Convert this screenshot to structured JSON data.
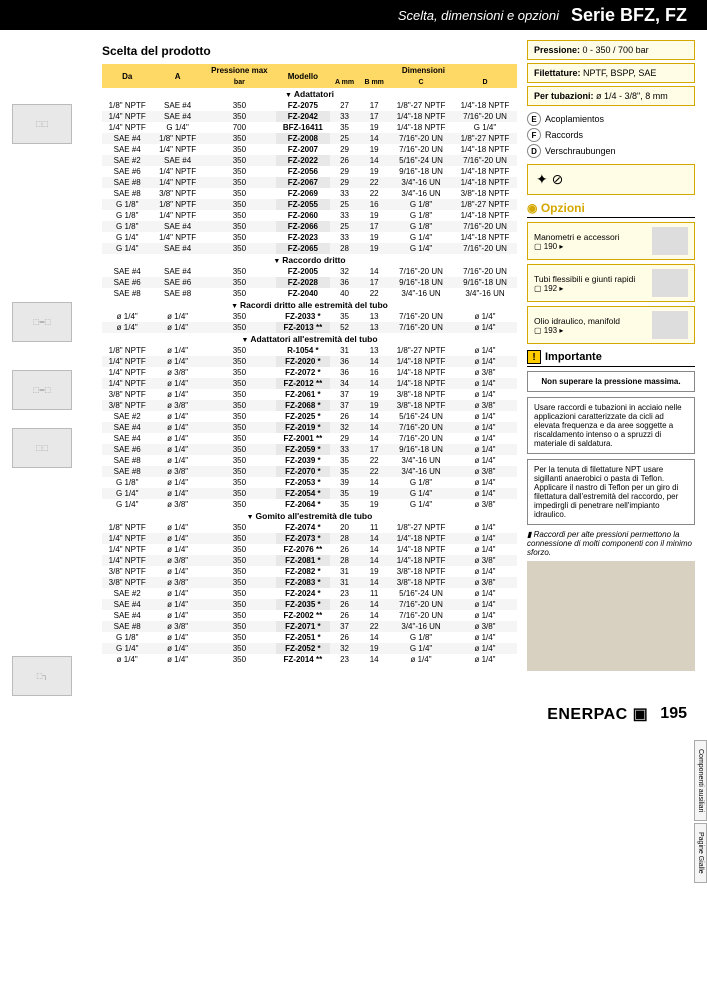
{
  "header": {
    "subtitle": "Scelta, dimensioni e opzioni",
    "title": "Serie BFZ, FZ"
  },
  "section_heading": "Scelta del prodotto",
  "table_headers": {
    "da": "Da",
    "a": "A",
    "press": "Pressione max",
    "press_unit": "bar",
    "model": "Modello",
    "dims": "Dimensioni",
    "amm": "A mm",
    "bmm": "B mm",
    "c": "C",
    "d": "D"
  },
  "groups": [
    {
      "name": "Adattatori",
      "rows": [
        [
          "1/8\" NPTF",
          "SAE #4",
          "350",
          "FZ-2075",
          "27",
          "17",
          "1/8\"-27 NPTF",
          "1/4\"-18 NPTF"
        ],
        [
          "1/4\" NPTF",
          "SAE #4",
          "350",
          "FZ-2042",
          "33",
          "17",
          "1/4\"-18 NPTF",
          "7/16\"-20 UN"
        ],
        [
          "1/4\" NPTF",
          "G 1/4\"",
          "700",
          "BFZ-16411",
          "35",
          "19",
          "1/4\"-18 NPTF",
          "G 1/4\""
        ],
        [
          "SAE #4",
          "1/8\" NPTF",
          "350",
          "FZ-2008",
          "25",
          "14",
          "7/16\"-20 UN",
          "1/8\"-27 NPTF"
        ],
        [
          "SAE #4",
          "1/4\" NPTF",
          "350",
          "FZ-2007",
          "29",
          "19",
          "7/16\"-20 UN",
          "1/4\"-18 NPTF"
        ],
        [
          "SAE #2",
          "SAE #4",
          "350",
          "FZ-2022",
          "26",
          "14",
          "5/16\"-24 UN",
          "7/16\"-20 UN"
        ],
        [
          "SAE #6",
          "1/4\" NPTF",
          "350",
          "FZ-2056",
          "29",
          "19",
          "9/16\"-18 UN",
          "1/4\"-18 NPTF"
        ],
        [
          "SAE #8",
          "1/4\" NPTF",
          "350",
          "FZ-2067",
          "29",
          "22",
          "3/4\"-16 UN",
          "1/4\"-18 NPTF"
        ],
        [
          "SAE #8",
          "3/8\" NPTF",
          "350",
          "FZ-2069",
          "33",
          "22",
          "3/4\"-16 UN",
          "3/8\"-18 NPTF"
        ],
        [
          "G 1/8\"",
          "1/8\" NPTF",
          "350",
          "FZ-2055",
          "25",
          "16",
          "G 1/8\"",
          "1/8\"-27 NPTF"
        ],
        [
          "G 1/8\"",
          "1/4\" NPTF",
          "350",
          "FZ-2060",
          "33",
          "19",
          "G 1/8\"",
          "1/4\"-18 NPTF"
        ],
        [
          "G 1/8\"",
          "SAE #4",
          "350",
          "FZ-2066",
          "25",
          "17",
          "G 1/8\"",
          "7/16\"-20 UN"
        ],
        [
          "G 1/4\"",
          "1/4\" NPTF",
          "350",
          "FZ-2023",
          "33",
          "19",
          "G 1/4\"",
          "1/4\"-18 NPTF"
        ],
        [
          "G 1/4\"",
          "SAE #4",
          "350",
          "FZ-2065",
          "28",
          "19",
          "G 1/4\"",
          "7/16\"-20 UN"
        ]
      ]
    },
    {
      "name": "Raccordo dritto",
      "rows": [
        [
          "SAE #4",
          "SAE #4",
          "350",
          "FZ-2005",
          "32",
          "14",
          "7/16\"-20 UN",
          "7/16\"-20 UN"
        ],
        [
          "SAE #6",
          "SAE #6",
          "350",
          "FZ-2028",
          "36",
          "17",
          "9/16\"-18 UN",
          "9/16\"-18 UN"
        ],
        [
          "SAE #8",
          "SAE #8",
          "350",
          "FZ-2040",
          "40",
          "22",
          "3/4\"-16 UN",
          "3/4\"-16 UN"
        ]
      ]
    },
    {
      "name": "Racordi dritto alle estremità del tubo",
      "rows": [
        [
          "ø 1/4\"",
          "ø 1/4\"",
          "350",
          "FZ-2033 *",
          "35",
          "13",
          "7/16\"-20 UN",
          "ø 1/4\""
        ],
        [
          "ø 1/4\"",
          "ø 1/4\"",
          "350",
          "FZ-2013 **",
          "52",
          "13",
          "7/16\"-20 UN",
          "ø 1/4\""
        ]
      ]
    },
    {
      "name": "Adattatori all'estremità del tubo",
      "rows": [
        [
          "1/8\" NPTF",
          "ø 1/4\"",
          "350",
          "R-1054 *",
          "31",
          "13",
          "1/8\"-27 NPTF",
          "ø 1/4\""
        ],
        [
          "1/4\" NPTF",
          "ø 1/4\"",
          "350",
          "FZ-2020 *",
          "36",
          "14",
          "1/4\"-18 NPTF",
          "ø 1/4\""
        ],
        [
          "1/4\" NPTF",
          "ø 3/8\"",
          "350",
          "FZ-2072 *",
          "36",
          "16",
          "1/4\"-18 NPTF",
          "ø 3/8\""
        ],
        [
          "1/4\" NPTF",
          "ø 1/4\"",
          "350",
          "FZ-2012 **",
          "34",
          "14",
          "1/4\"-18 NPTF",
          "ø 1/4\""
        ],
        [
          "3/8\" NPTF",
          "ø 1/4\"",
          "350",
          "FZ-2061 *",
          "37",
          "19",
          "3/8\"-18 NPTF",
          "ø 1/4\""
        ],
        [
          "3/8\" NPTF",
          "ø 3/8\"",
          "350",
          "FZ-2068 *",
          "37",
          "19",
          "3/8\"-18 NPTF",
          "ø 3/8\""
        ],
        [
          "SAE #2",
          "ø 1/4\"",
          "350",
          "FZ-2025 *",
          "26",
          "14",
          "5/16\"-24 UN",
          "ø 1/4\""
        ],
        [
          "SAE #4",
          "ø 1/4\"",
          "350",
          "FZ-2019 *",
          "32",
          "14",
          "7/16\"-20 UN",
          "ø 1/4\""
        ],
        [
          "SAE #4",
          "ø 1/4\"",
          "350",
          "FZ-2001 **",
          "29",
          "14",
          "7/16\"-20 UN",
          "ø 1/4\""
        ],
        [
          "SAE #6",
          "ø 1/4\"",
          "350",
          "FZ-2059 *",
          "33",
          "17",
          "9/16\"-18 UN",
          "ø 1/4\""
        ],
        [
          "SAE #8",
          "ø 1/4\"",
          "350",
          "FZ-2039 *",
          "35",
          "22",
          "3/4\"-16 UN",
          "ø 1/4\""
        ],
        [
          "SAE #8",
          "ø 3/8\"",
          "350",
          "FZ-2070 *",
          "35",
          "22",
          "3/4\"-16 UN",
          "ø 3/8\""
        ],
        [
          "G 1/8\"",
          "ø 1/4\"",
          "350",
          "FZ-2053 *",
          "39",
          "14",
          "G 1/8\"",
          "ø 1/4\""
        ],
        [
          "G 1/4\"",
          "ø 1/4\"",
          "350",
          "FZ-2054 *",
          "35",
          "19",
          "G 1/4\"",
          "ø 1/4\""
        ],
        [
          "G 1/4\"",
          "ø 3/8\"",
          "350",
          "FZ-2064 *",
          "35",
          "19",
          "G 1/4\"",
          "ø 3/8\""
        ]
      ]
    },
    {
      "name": "Gomito all'estremità dle tubo",
      "rows": [
        [
          "1/8\" NPTF",
          "ø 1/4\"",
          "350",
          "FZ-2074 *",
          "20",
          "11",
          "1/8\"-27 NPTF",
          "ø 1/4\""
        ],
        [
          "1/4\" NPTF",
          "ø 1/4\"",
          "350",
          "FZ-2073 *",
          "28",
          "14",
          "1/4\"-18 NPTF",
          "ø 1/4\""
        ],
        [
          "1/4\" NPTF",
          "ø 1/4\"",
          "350",
          "FZ-2076 **",
          "26",
          "14",
          "1/4\"-18 NPTF",
          "ø 1/4\""
        ],
        [
          "1/4\" NPTF",
          "ø 3/8\"",
          "350",
          "FZ-2081 *",
          "28",
          "14",
          "1/4\"-18 NPTF",
          "ø 3/8\""
        ],
        [
          "3/8\" NPTF",
          "ø 1/4\"",
          "350",
          "FZ-2082 *",
          "31",
          "19",
          "3/8\"-18 NPTF",
          "ø 1/4\""
        ],
        [
          "3/8\" NPTF",
          "ø 3/8\"",
          "350",
          "FZ-2083 *",
          "31",
          "14",
          "3/8\"-18 NPTF",
          "ø 3/8\""
        ],
        [
          "SAE #2",
          "ø 1/4\"",
          "350",
          "FZ-2024 *",
          "23",
          "11",
          "5/16\"-24 UN",
          "ø 1/4\""
        ],
        [
          "SAE #4",
          "ø 1/4\"",
          "350",
          "FZ-2035 *",
          "26",
          "14",
          "7/16\"-20 UN",
          "ø 1/4\""
        ],
        [
          "SAE #4",
          "ø 1/4\"",
          "350",
          "FZ-2002 **",
          "26",
          "14",
          "7/16\"-20 UN",
          "ø 1/4\""
        ],
        [
          "SAE #8",
          "ø 3/8\"",
          "350",
          "FZ-2071 *",
          "37",
          "22",
          "3/4\"-16 UN",
          "ø 3/8\""
        ],
        [
          "G 1/8\"",
          "ø 1/4\"",
          "350",
          "FZ-2051 *",
          "26",
          "14",
          "G 1/8\"",
          "ø 1/4\""
        ],
        [
          "G 1/4\"",
          "ø 1/4\"",
          "350",
          "FZ-2052 *",
          "32",
          "19",
          "G 1/4\"",
          "ø 1/4\""
        ],
        [
          "ø 1/4\"",
          "ø 1/4\"",
          "350",
          "FZ-2014 **",
          "23",
          "14",
          "ø 1/4\"",
          "ø 1/4\""
        ]
      ]
    }
  ],
  "info_boxes": [
    {
      "label": "Pressione:",
      "value": "0 - 350 / 700 bar"
    },
    {
      "label": "Filettature:",
      "value": "NPTF, BSPP, SAE"
    },
    {
      "label": "Per tubazioni:",
      "value": "ø 1/4 - 3/8\", 8 mm"
    }
  ],
  "langs": [
    {
      "code": "E",
      "label": "Acoplamientos"
    },
    {
      "code": "F",
      "label": "Raccords"
    },
    {
      "code": "D",
      "label": "Verschraubungen"
    }
  ],
  "symbols": "✦ ⊘",
  "opzioni_title": "Opzioni",
  "opzioni": [
    {
      "title": "Manometri e accessori",
      "page": "▢ 190 ▸"
    },
    {
      "title": "Tubi flessibili e giunti rapidi",
      "page": "▢ 192 ▸"
    },
    {
      "title": "Olio idraulico, manifold",
      "page": "▢ 193 ▸"
    }
  ],
  "importante_title": "Importante",
  "notes": [
    "Non superare la pressione massima.",
    "Usare raccordi e tubazioni in acciaio nelle applicazioni caratterizzate da cicli ad elevata frequenza e da aree soggette a riscaldamento intenso o a spruzzi di materiale di saldatura.",
    "Per la tenuta di filettature NPT usare sigillanti anaerobici o pasta di Teflon. Applicare il nastro di Teflon per un giro di filettatura dall'estremità del raccordo, per impedirgli di penetrare nell'impianto idraulico."
  ],
  "caption": "Raccordi per alte pressioni permettono la connessione di molti componenti con il minimo sforzo.",
  "side_tabs": [
    "Componenti ausiliari",
    "Pagine Gialle"
  ],
  "brand": "ENERPAC ▣",
  "pagenum": "195",
  "colors": {
    "header_bg": "#000000",
    "th_bg": "#ffd966",
    "box_border": "#d4a800",
    "box_bg": "#fffde6"
  }
}
